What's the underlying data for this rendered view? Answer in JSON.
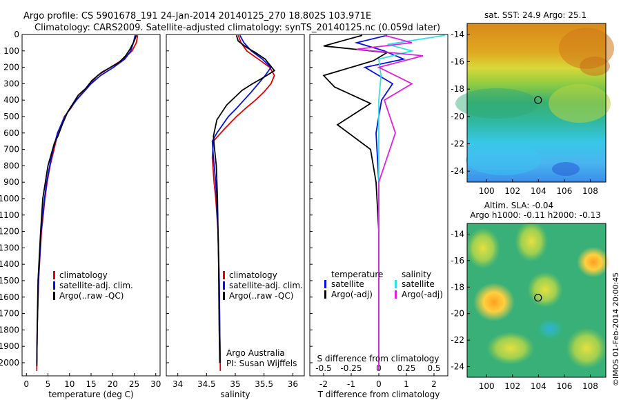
{
  "header": {
    "line1": "Argo profile: CS 5901678_191 24-Jan-2014 20140125_270 18.802S 103.971E",
    "line2": "Climatology: CARS2009. Satellite-adjusted climatology: synTS_20140125.nc (0.059d later)"
  },
  "colors": {
    "climatology": "#e00000",
    "satellite": "#0010e0",
    "argo": "#000000",
    "salinity_satellite": "#30e0e8",
    "salinity_argo": "#e020e0"
  },
  "chart_data": [
    {
      "type": "line",
      "xlabel": "temperature (deg C)",
      "ylabel": "",
      "xlim": [
        -1,
        31
      ],
      "ylim": [
        2080,
        0
      ],
      "xticks": [
        "0",
        "5",
        "10",
        "15",
        "20",
        "25",
        "30"
      ],
      "yticks": [
        "0",
        "100",
        "200",
        "300",
        "400",
        "500",
        "600",
        "700",
        "800",
        "900",
        "1000",
        "1100",
        "1200",
        "1300",
        "1400",
        "1500",
        "1600",
        "1700",
        "1800",
        "1900",
        "2000"
      ],
      "grid": false,
      "legend": "bottom-center",
      "series": [
        {
          "name": "climatology",
          "x": [
            25.8,
            25.5,
            24.5,
            22.5,
            19.5,
            16.5,
            14.8,
            13.2,
            11.5,
            10.3,
            8.8,
            7.3,
            6.4,
            5.5,
            4.8,
            4.3,
            3.5,
            2.8,
            2.5,
            2.4
          ],
          "y": [
            5,
            50,
            100,
            150,
            200,
            250,
            300,
            350,
            400,
            450,
            500,
            600,
            700,
            800,
            900,
            1000,
            1200,
            1500,
            1800,
            2050
          ]
        },
        {
          "name": "satellite-adj. clim.",
          "x": [
            25.2,
            24.8,
            24.2,
            22.8,
            20.2,
            17.2,
            15.0,
            13.3,
            11.6,
            10.2,
            8.9,
            7.2,
            6.2,
            5.4,
            4.7,
            4.2,
            3.4,
            2.8,
            2.5,
            2.4
          ],
          "y": [
            5,
            50,
            100,
            150,
            200,
            250,
            300,
            350,
            400,
            450,
            500,
            600,
            700,
            800,
            900,
            1000,
            1200,
            1500,
            1800,
            2000
          ]
        },
        {
          "name": "Argo(..raw -QC)",
          "x": [
            25.5,
            25.0,
            24.0,
            23.0,
            21.5,
            17.5,
            15.2,
            13.7,
            12.0,
            10.8,
            9.6,
            8.3,
            7.3,
            6.5,
            5.0,
            3.8,
            3.3,
            2.7,
            2.5,
            2.4
          ],
          "y": [
            5,
            40,
            90,
            130,
            170,
            230,
            280,
            330,
            370,
            420,
            470,
            550,
            620,
            660,
            800,
            1000,
            1200,
            1500,
            1800,
            2020
          ]
        }
      ],
      "legend_entries": [
        "climatology",
        "satellite-adj. clim.",
        "Argo(..raw -QC)"
      ]
    },
    {
      "type": "line",
      "xlabel": "salinity",
      "ylabel": "",
      "xlim": [
        33.8,
        36.2
      ],
      "ylim": [
        2080,
        0
      ],
      "xticks": [
        "34",
        "34.5",
        "35",
        "35.5",
        "36"
      ],
      "annotation": [
        "Argo Australia",
        "PI: Susan Wijffels"
      ],
      "grid": false,
      "legend": "bottom-center",
      "series": [
        {
          "name": "climatology",
          "x": [
            35.05,
            35.1,
            35.2,
            35.4,
            35.6,
            35.68,
            35.62,
            35.5,
            35.35,
            35.18,
            35.02,
            34.8,
            34.62,
            34.6,
            34.63,
            34.66,
            34.7,
            34.72,
            34.73,
            34.74
          ],
          "y": [
            5,
            50,
            100,
            150,
            200,
            250,
            300,
            350,
            400,
            450,
            500,
            580,
            650,
            750,
            900,
            1000,
            1200,
            1500,
            1800,
            2050
          ]
        },
        {
          "name": "satellite-adj. clim.",
          "x": [
            35.08,
            35.15,
            35.28,
            35.47,
            35.62,
            35.52,
            35.4,
            35.28,
            35.15,
            35.02,
            34.88,
            34.68,
            34.6,
            34.62,
            34.66,
            34.7,
            34.72,
            34.73,
            34.74
          ],
          "y": [
            5,
            50,
            100,
            150,
            200,
            250,
            300,
            350,
            400,
            450,
            500,
            600,
            650,
            750,
            900,
            1200,
            1500,
            1800,
            2000
          ]
        },
        {
          "name": "Argo(..raw -QC)",
          "x": [
            35.02,
            35.05,
            35.2,
            35.35,
            35.52,
            35.68,
            35.5,
            35.3,
            35.12,
            35.0,
            34.85,
            34.68,
            34.62,
            34.64,
            34.67,
            34.69,
            34.71,
            34.72,
            34.73
          ],
          "y": [
            5,
            40,
            80,
            110,
            150,
            220,
            260,
            300,
            340,
            380,
            430,
            520,
            620,
            700,
            800,
            1000,
            1400,
            1800,
            2000
          ]
        }
      ],
      "legend_entries": [
        "climatology",
        "satellite-adj. clim.",
        "Argo(..raw -QC)"
      ]
    },
    {
      "type": "line",
      "xlabel": "T difference from climatology",
      "secondary_xlabel": "S difference from climatology",
      "xlim": [
        -2.5,
        2.5
      ],
      "ylim": [
        2080,
        0
      ],
      "xticks": [
        "-2",
        "-1",
        "0",
        "1",
        "2"
      ],
      "secondary_xticks": [
        "-0.5",
        "-0.25",
        "0",
        "0.25",
        "0.5"
      ],
      "grid": false,
      "legend": "bottom-center",
      "legend_headers": [
        "temperature",
        "salinity"
      ],
      "legend_entries": [
        "satellite",
        "Argo(-adj)",
        "satellite",
        "Argo(-adj)"
      ],
      "series": [
        {
          "name": "satellite",
          "group": "temperature",
          "x": [
            0.3,
            -0.8,
            0.2,
            0.9,
            -0.5,
            0.5,
            0.1,
            -0.1,
            0.0,
            0.0,
            0.0,
            0.0
          ],
          "y": [
            5,
            50,
            100,
            150,
            200,
            300,
            400,
            600,
            900,
            1300,
            1700,
            2050
          ]
        },
        {
          "name": "Argo(-adj)",
          "group": "temperature",
          "x": [
            -0.6,
            -2.0,
            0.3,
            -0.2,
            -1.0,
            -2.0,
            -1.6,
            -0.3,
            -1.5,
            -0.3,
            -0.1,
            0.0,
            0.0,
            0.0
          ],
          "y": [
            5,
            70,
            110,
            160,
            200,
            250,
            320,
            420,
            550,
            700,
            900,
            1200,
            1600,
            2050
          ]
        },
        {
          "name": "satellite",
          "group": "salinity",
          "x": [
            0.6,
            0.08,
            0.3,
            0.0,
            0.02,
            0.0,
            0.0,
            0.0,
            0.0
          ],
          "y": [
            5,
            60,
            100,
            150,
            250,
            400,
            700,
            1200,
            2050
          ]
        },
        {
          "name": "Argo(-adj)",
          "group": "salinity",
          "x": [
            0.05,
            0.3,
            -0.2,
            0.4,
            0.0,
            0.3,
            0.05,
            0.15,
            0.0,
            0.0
          ],
          "y": [
            5,
            50,
            90,
            130,
            200,
            300,
            400,
            600,
            900,
            2050
          ]
        }
      ]
    },
    {
      "type": "heatmap",
      "title": "sat. SST: 24.9 Argo: 25.1",
      "xticks": [
        "100",
        "102",
        "104",
        "106",
        "108"
      ],
      "yticks": [
        "-14",
        "-16",
        "-18",
        "-20",
        "-22",
        "-24"
      ],
      "xlim": [
        98.5,
        109.2
      ],
      "ylim": [
        -24.8,
        -13.2
      ],
      "marker": {
        "lon": 103.971,
        "lat": -18.802
      }
    },
    {
      "type": "heatmap",
      "title": [
        "Altim. SLA: -0.04",
        "Argo h1000: -0.11 h2000: -0.13"
      ],
      "xticks": [
        "100",
        "102",
        "104",
        "106",
        "108"
      ],
      "yticks": [
        "-14",
        "-16",
        "-18",
        "-20",
        "-22",
        "-24"
      ],
      "xlim": [
        98.5,
        109.2
      ],
      "ylim": [
        -24.8,
        -13.2
      ],
      "marker": {
        "lon": 103.971,
        "lat": -18.802
      }
    }
  ],
  "side_text": "©IMOS 01-Feb-2014 20:00:45"
}
